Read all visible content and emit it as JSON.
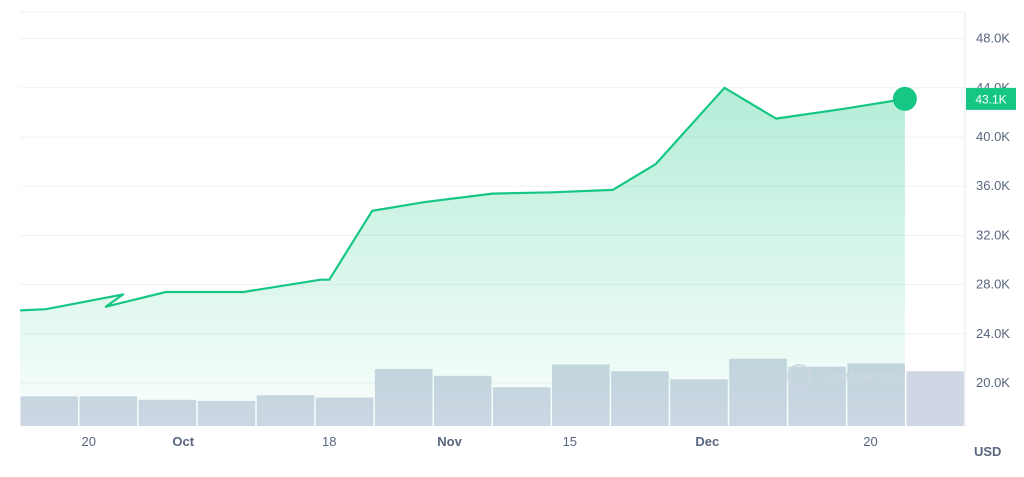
{
  "chart_data": {
    "type": "area",
    "currency_label": "USD",
    "current_value_label": "43.1K",
    "watermark": "CoinMarketCap",
    "x_tick_labels": [
      {
        "x": "2023-09-20",
        "label": "20",
        "bold": false
      },
      {
        "x": "2023-10-01",
        "label": "Oct",
        "bold": true
      },
      {
        "x": "2023-10-18",
        "label": "18",
        "bold": false
      },
      {
        "x": "2023-11-01",
        "label": "Nov",
        "bold": true
      },
      {
        "x": "2023-11-15",
        "label": "15",
        "bold": false
      },
      {
        "x": "2023-12-01",
        "label": "Dec",
        "bold": true
      },
      {
        "x": "2023-12-20",
        "label": "20",
        "bold": false
      }
    ],
    "y_ticks": [
      {
        "value": 20000,
        "label": "20.0K"
      },
      {
        "value": 24000,
        "label": "24.0K"
      },
      {
        "value": 28000,
        "label": "28.0K"
      },
      {
        "value": 32000,
        "label": "32.0K"
      },
      {
        "value": 36000,
        "label": "36.0K"
      },
      {
        "value": 40000,
        "label": "40.0K"
      },
      {
        "value": 44000,
        "label": "44.0K"
      },
      {
        "value": 48000,
        "label": "48.0K"
      }
    ],
    "price_series": {
      "x": [
        "2023-09-12",
        "2023-09-15",
        "2023-09-24",
        "2023-09-22",
        "2023-09-29",
        "2023-10-08",
        "2023-10-17",
        "2023-10-18",
        "2023-10-23",
        "2023-10-29",
        "2023-11-06",
        "2023-11-13",
        "2023-11-20",
        "2023-11-25",
        "2023-12-03",
        "2023-12-09",
        "2023-12-17",
        "2023-12-24"
      ],
      "y": [
        25900,
        26000,
        27200,
        26200,
        27400,
        27400,
        28400,
        28400,
        34000,
        34700,
        35400,
        35500,
        35700,
        37800,
        44000,
        41500,
        42300,
        43100
      ]
    },
    "volume_bars": {
      "x": [
        "2023-09-12",
        "2023-09-19",
        "2023-09-26",
        "2023-10-03",
        "2023-10-10",
        "2023-10-17",
        "2023-10-24",
        "2023-10-31",
        "2023-11-07",
        "2023-11-14",
        "2023-11-21",
        "2023-11-28",
        "2023-12-05",
        "2023-12-12",
        "2023-12-19",
        "2023-12-26"
      ],
      "relative_height": [
        0.26,
        0.26,
        0.23,
        0.22,
        0.27,
        0.25,
        0.5,
        0.44,
        0.34,
        0.54,
        0.48,
        0.41,
        0.59,
        0.52,
        0.55,
        0.48
      ]
    },
    "colors": {
      "line": "#16c784",
      "area_top": "#16c784",
      "bars": "#cfd6e4",
      "badge": "#16c784",
      "grid": "#eff2f5",
      "axis_text": "#58667e"
    }
  }
}
